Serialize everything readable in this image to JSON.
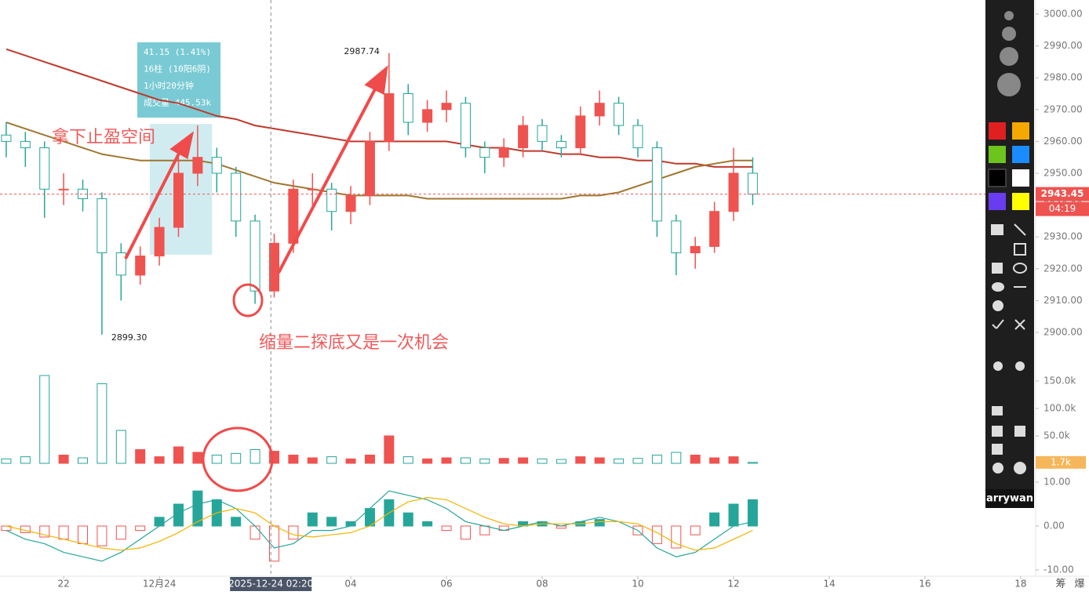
{
  "chart_data": {
    "type": "candlestick",
    "x": [
      20.8,
      21.2,
      21.6,
      22.0,
      22.4,
      22.8,
      23.2,
      23.6,
      24.0,
      24.4,
      24.8,
      25.2,
      25.6,
      26.0,
      26.4,
      26.8,
      27.2,
      27.6,
      28.0,
      28.4,
      28.8,
      29.2,
      29.6,
      30.0,
      30.4,
      30.8,
      31.2,
      31.6,
      32.0,
      32.4,
      32.8,
      33.2,
      33.6,
      34.0,
      34.4,
      34.8,
      35.2,
      35.6,
      36.0,
      36.4
    ],
    "ohlc": [
      [
        2962,
        2966,
        2955,
        2960
      ],
      [
        2960,
        2963,
        2952,
        2958
      ],
      [
        2958,
        2960,
        2936,
        2945
      ],
      [
        2945,
        2950,
        2940,
        2945
      ],
      [
        2945,
        2948,
        2938,
        2942
      ],
      [
        2942,
        2944,
        2899.3,
        2925
      ],
      [
        2925,
        2928,
        2910,
        2918
      ],
      [
        2918,
        2927,
        2915,
        2924
      ],
      [
        2924,
        2936,
        2921,
        2933
      ],
      [
        2933,
        2955,
        2930,
        2950
      ],
      [
        2950,
        2965,
        2946,
        2955
      ],
      [
        2955,
        2958,
        2944,
        2950
      ],
      [
        2950,
        2952,
        2930,
        2935
      ],
      [
        2935,
        2937,
        2909,
        2913
      ],
      [
        2913,
        2931,
        2911,
        2928
      ],
      [
        2928,
        2948,
        2925,
        2945
      ],
      [
        2945,
        2950,
        2940,
        2945
      ],
      [
        2945,
        2947,
        2932,
        2938
      ],
      [
        2938,
        2946,
        2934,
        2943
      ],
      [
        2943,
        2963,
        2940,
        2960
      ],
      [
        2960,
        2987.74,
        2957,
        2975
      ],
      [
        2975,
        2978,
        2962,
        2966
      ],
      [
        2966,
        2973,
        2963,
        2970
      ],
      [
        2970,
        2976,
        2966,
        2972
      ],
      [
        2972,
        2974,
        2955,
        2958
      ],
      [
        2958,
        2960,
        2950,
        2955
      ],
      [
        2955,
        2961,
        2952,
        2958
      ],
      [
        2958,
        2968,
        2955,
        2965
      ],
      [
        2965,
        2967,
        2957,
        2960
      ],
      [
        2960,
        2962,
        2955,
        2958
      ],
      [
        2958,
        2971,
        2956,
        2968
      ],
      [
        2968,
        2976,
        2965,
        2972
      ],
      [
        2972,
        2974,
        2962,
        2965
      ],
      [
        2965,
        2967,
        2955,
        2958
      ],
      [
        2958,
        2960,
        2930,
        2935
      ],
      [
        2935,
        2937,
        2918,
        2925
      ],
      [
        2925,
        2930,
        2920,
        2927
      ],
      [
        2927,
        2941,
        2925,
        2938
      ],
      [
        2938,
        2958,
        2935,
        2950
      ],
      [
        2950,
        2955,
        2940,
        2943.45
      ]
    ],
    "up_color": "#ef5350",
    "down_color": "#26a69a",
    "series": [
      {
        "color": "#c0392b",
        "values": [
          2989,
          2987,
          2985,
          2983,
          2981,
          2979,
          2977,
          2975,
          2973,
          2972,
          2970,
          2968,
          2967,
          2965,
          2964,
          2963,
          2962,
          2961,
          2960,
          2960,
          2960,
          2960,
          2960,
          2960,
          2959,
          2958,
          2958,
          2957,
          2957,
          2956,
          2956,
          2955,
          2955,
          2954,
          2954,
          2953,
          2953,
          2952,
          2952,
          2952
        ]
      },
      {
        "color": "#a0762f",
        "values": [
          2966,
          2964,
          2962,
          2960,
          2958,
          2956,
          2955,
          2954,
          2954,
          2954,
          2954,
          2953,
          2951,
          2949,
          2947,
          2946,
          2945,
          2944,
          2943,
          2943,
          2943,
          2943,
          2942,
          2942,
          2942,
          2942,
          2942,
          2942,
          2942,
          2942,
          2943,
          2943,
          2944,
          2946,
          2948,
          2950,
          2952,
          2953,
          2954,
          2954
        ]
      }
    ],
    "xlim": [
      20.67,
      42.28
    ],
    "xticks": [
      {
        "value": 22,
        "label": "22"
      },
      {
        "value": 24,
        "label": "12月24"
      },
      {
        "value": 28,
        "label": "04"
      },
      {
        "value": 30,
        "label": "06"
      },
      {
        "value": 32,
        "label": "08"
      },
      {
        "value": 34,
        "label": "10"
      },
      {
        "value": 36,
        "label": "12"
      },
      {
        "value": 38,
        "label": "14"
      },
      {
        "value": 40,
        "label": "16"
      },
      {
        "value": 42,
        "label": "18"
      }
    ],
    "ylim": [
      2888.67,
      3004.43
    ],
    "yticks": [
      {
        "value": 3000,
        "label": "3000.00"
      },
      {
        "value": 2990,
        "label": "2990.00"
      },
      {
        "value": 2980,
        "label": "2980.00"
      },
      {
        "value": 2970,
        "label": "2970.00"
      },
      {
        "value": 2960,
        "label": "2960.00"
      },
      {
        "value": 2950,
        "label": "2950.00"
      },
      {
        "value": 2940,
        "label": "2940.00"
      },
      {
        "value": 2930,
        "label": "2930.00"
      },
      {
        "value": 2920,
        "label": "2920.00"
      },
      {
        "value": 2910,
        "label": "2910.00"
      },
      {
        "value": 2900,
        "label": "2900.00"
      }
    ],
    "current_price": 2943.45,
    "countdown": "04:19",
    "crosshair": {
      "x": 26.33,
      "label": "2025-12-24 02:20"
    },
    "high_label": "2987.74",
    "low_label": "2899.30",
    "measure": {
      "x": [
        23.8,
        25.1
      ],
      "price": [
        2965.5,
        2924.4
      ],
      "lines": [
        "41.15 (1.41%)",
        "16柱 (10阳6阴)",
        "1小时20分钟",
        "成交量 445.53k"
      ]
    },
    "annotations": [
      "拿下止盈空间",
      "缩量二探底又是一次机会"
    ],
    "volume": {
      "values": [
        8000,
        12000,
        160000,
        15000,
        10000,
        145000,
        60000,
        25000,
        12000,
        30000,
        20000,
        15000,
        18000,
        25000,
        22000,
        15000,
        10000,
        12000,
        8000,
        15000,
        50000,
        12000,
        8000,
        10000,
        10000,
        8000,
        9000,
        10000,
        8000,
        7000,
        12000,
        10000,
        8000,
        9000,
        15000,
        20000,
        15000,
        10000,
        12000,
        1700
      ],
      "ylim": [
        0,
        172860
      ],
      "yticks": [
        {
          "value": 150000,
          "label": "150.0k"
        },
        {
          "value": 100000,
          "label": "100.0k"
        },
        {
          "value": 50000,
          "label": "50.0k"
        }
      ],
      "last_label": "1.7k"
    },
    "macd": {
      "histogram": [
        -1,
        -1.5,
        -2.5,
        -3,
        -4,
        -4.5,
        -3,
        -1,
        2,
        5,
        8,
        6,
        2,
        -3,
        -8,
        -3,
        3,
        2,
        1,
        4,
        6,
        3,
        1,
        -1,
        -3,
        -2,
        -1,
        1,
        1,
        -0.5,
        1,
        1.5,
        0,
        -2,
        -4,
        -5,
        -2,
        3,
        5,
        6
      ],
      "series": [
        {
          "color": "#26a69a",
          "values": [
            -1,
            -3,
            -4,
            -6,
            -7,
            -8,
            -6,
            -3,
            0,
            3,
            5,
            6,
            4,
            0,
            -5,
            -4,
            -1,
            -1,
            0,
            4,
            8,
            7,
            6,
            4,
            1,
            0,
            -1,
            0,
            1,
            0,
            1,
            2,
            1,
            -1,
            -5,
            -7,
            -6,
            -3,
            0,
            1
          ]
        },
        {
          "color": "#f5b400",
          "values": [
            0,
            -1,
            -2,
            -3,
            -4,
            -5,
            -5.5,
            -5,
            -3.5,
            -1.5,
            1,
            3,
            4,
            3,
            0,
            -2,
            -2.5,
            -2,
            -1.5,
            0,
            3,
            5.5,
            6.5,
            6,
            4,
            2,
            0.5,
            0,
            0.5,
            0.5,
            0.5,
            1,
            1,
            0.5,
            -1.5,
            -4,
            -5.5,
            -5,
            -3,
            -1
          ]
        }
      ],
      "ylim": [
        -11.43,
        11.79
      ],
      "yticks": [
        {
          "value": 10,
          "label": "10.00"
        },
        {
          "value": 0,
          "label": "0.00"
        },
        {
          "value": -10,
          "label": "-10.00"
        }
      ]
    },
    "toolbar_user": "arrywan",
    "bottom_labels": [
      "筹",
      "爆"
    ]
  }
}
